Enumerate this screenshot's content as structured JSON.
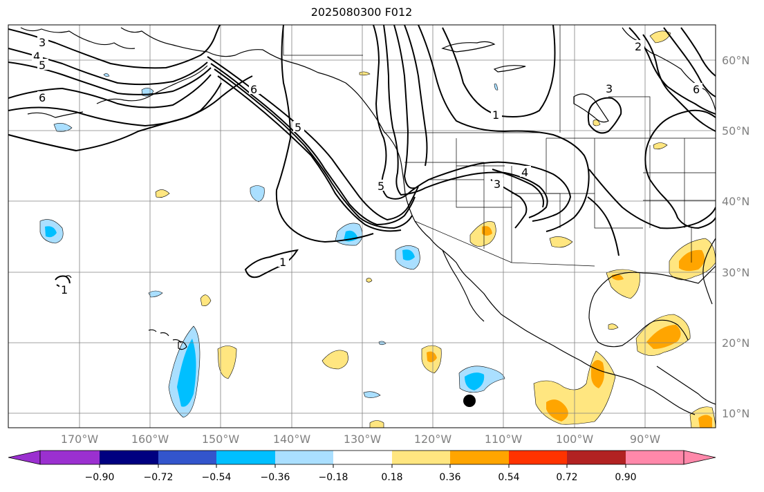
{
  "title": "2025080300 F012",
  "lat_labels": [
    "60°N",
    "50°N",
    "40°N",
    "30°N",
    "20°N",
    "10°N"
  ],
  "lon_labels": [
    "170°W",
    "160°W",
    "150°W",
    "140°W",
    "130°W",
    "120°W",
    "110°W",
    "100°W",
    "90°W"
  ],
  "contour_labels": [
    "3",
    "4",
    "5",
    "6",
    "6",
    "5",
    "5",
    "4",
    "3",
    "1",
    "1",
    "1",
    "3",
    "2",
    "6"
  ],
  "colorbar": {
    "ticks": [
      "−0.90",
      "−0.72",
      "−0.54",
      "−0.36",
      "−0.18",
      "0.18",
      "0.36",
      "0.54",
      "0.72",
      "0.90"
    ],
    "colors": [
      "#9b30d0",
      "#000080",
      "#3355cc",
      "#00bfff",
      "#aadfff",
      "#ffffff",
      "#ffe680",
      "#ffa500",
      "#ff3300",
      "#b22222",
      "#ff88aa"
    ]
  },
  "colors": {
    "coast": "#000000",
    "grid": "#808080",
    "contour": "#000000",
    "marker": "#000000"
  }
}
